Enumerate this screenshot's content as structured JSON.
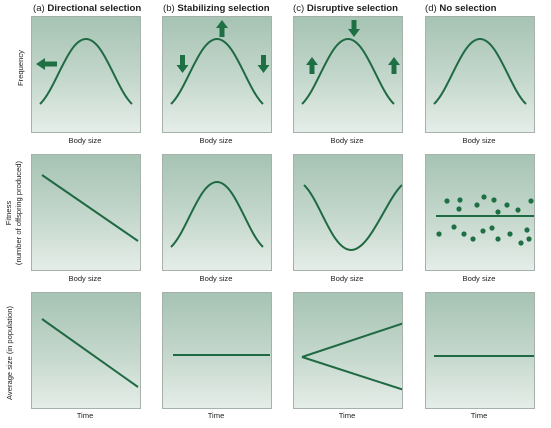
{
  "columns": [
    {
      "letter": "(a)",
      "name": "Directional selection"
    },
    {
      "letter": "(b)",
      "name": "Stabilizing selection"
    },
    {
      "letter": "(c)",
      "name": "Disruptive selection"
    },
    {
      "letter": "(d)",
      "name": "No selection"
    }
  ],
  "rows": [
    {
      "ylabel_lines": [
        "Frequency"
      ],
      "xlabel": "Body size",
      "graph": "frequency distribution"
    },
    {
      "ylabel_lines": [
        "Fitness",
        "(number of offspring produced)"
      ],
      "xlabel": "Body size",
      "graph": "fitness by body size"
    },
    {
      "ylabel_lines": [
        "Average size (in population)"
      ],
      "xlabel": "Time",
      "graph": "average size over time"
    }
  ],
  "panels": {
    "frequency": [
      {
        "curve": "bell",
        "arrows": [
          "left"
        ]
      },
      {
        "curve": "bell",
        "arrows": [
          "up-center",
          "down-left",
          "down-right"
        ]
      },
      {
        "curve": "bell",
        "arrows": [
          "down-center",
          "up-left",
          "up-right"
        ]
      },
      {
        "curve": "bell",
        "arrows": []
      }
    ],
    "fitness": [
      {
        "shape": "decreasing line"
      },
      {
        "shape": "bell"
      },
      {
        "shape": "u-shape"
      },
      {
        "shape": "scatter with flat line"
      }
    ],
    "average_size": [
      {
        "shape": "decreasing line"
      },
      {
        "shape": "flat line"
      },
      {
        "shape": "diverging lines"
      },
      {
        "shape": "flat line"
      }
    ]
  },
  "colors": {
    "curve": "#1f6a43",
    "arrow": "#1e6f44",
    "panel_top": "#a6c3b3",
    "panel_bottom": "#e5ede8",
    "text": "#1e1e1e"
  }
}
